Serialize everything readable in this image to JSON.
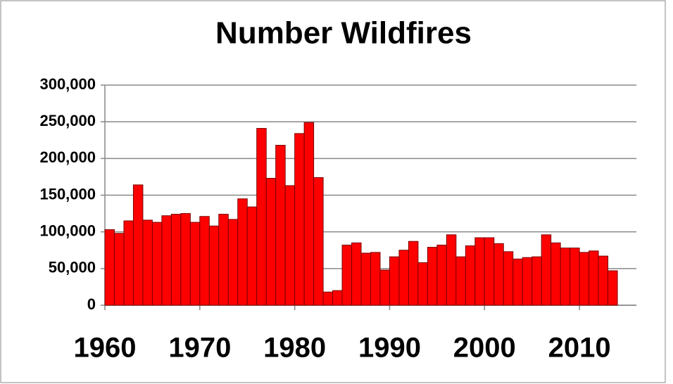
{
  "chart_data": {
    "type": "bar",
    "title": "Number Wildfires",
    "x": [
      1960,
      1961,
      1962,
      1963,
      1964,
      1965,
      1966,
      1967,
      1968,
      1969,
      1970,
      1971,
      1972,
      1973,
      1974,
      1975,
      1976,
      1977,
      1978,
      1979,
      1980,
      1981,
      1982,
      1983,
      1984,
      1985,
      1986,
      1987,
      1988,
      1989,
      1990,
      1991,
      1992,
      1993,
      1994,
      1995,
      1996,
      1997,
      1998,
      1999,
      2000,
      2001,
      2002,
      2003,
      2004,
      2005,
      2006,
      2007,
      2008,
      2009,
      2010,
      2011,
      2012,
      2013
    ],
    "values": [
      103000,
      98000,
      115000,
      164000,
      116000,
      113000,
      122000,
      124000,
      125000,
      113000,
      121000,
      108000,
      124000,
      117000,
      145000,
      134000,
      241000,
      173000,
      218000,
      163000,
      234000,
      249000,
      174000,
      18000,
      20000,
      82000,
      85000,
      71000,
      72000,
      48000,
      66000,
      75000,
      87000,
      58000,
      79000,
      82000,
      96000,
      66000,
      81000,
      92000,
      92000,
      84000,
      73000,
      63000,
      65000,
      66000,
      96000,
      85000,
      78000,
      78000,
      72000,
      74000,
      67000,
      47000
    ],
    "color": "#ff0000",
    "xlim": [
      1960,
      2016
    ],
    "xticks": [
      1960,
      1970,
      1980,
      1990,
      2000,
      2010
    ],
    "ylim": [
      0,
      300000
    ],
    "yticks": [
      0,
      {
        "value": 50000,
        "label": "50,000"
      },
      {
        "value": 100000,
        "label": "100,000"
      },
      {
        "value": 150000,
        "label": "150,000"
      },
      {
        "value": 200000,
        "label": "200,000"
      },
      {
        "value": 250000,
        "label": "250,000"
      },
      {
        "value": 300000,
        "label": "300,000"
      }
    ],
    "grid": true
  }
}
